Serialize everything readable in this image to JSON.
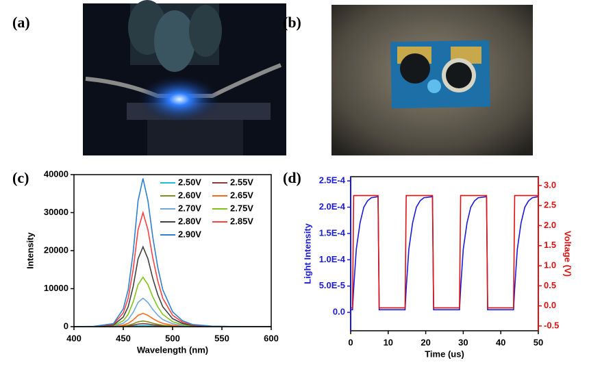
{
  "panels": [
    {
      "label": "(a)"
    },
    {
      "label": "(b)"
    },
    {
      "label": "(c)"
    },
    {
      "label": "(d)"
    }
  ],
  "chart_data": [
    {
      "type": "line",
      "xlabel": "Wavelength (nm)",
      "ylabel": "Intensity",
      "x": [
        400,
        420,
        440,
        450,
        455,
        460,
        465,
        470,
        475,
        480,
        485,
        490,
        500,
        510,
        520,
        540,
        560,
        580,
        600
      ],
      "xlim": [
        400,
        600
      ],
      "xticks": [
        400,
        450,
        500,
        550,
        600
      ],
      "ylim": [
        0,
        40000
      ],
      "yticks": [
        0,
        10000,
        20000,
        30000,
        40000
      ],
      "legend": "upper right",
      "legend_columns": 2,
      "series": [
        {
          "name": "2.50V",
          "color": "#1fc0d0",
          "values": [
            0,
            1,
            6,
            36,
            75,
            150,
            255,
            300,
            255,
            180,
            120,
            75,
            30,
            12,
            5,
            1,
            0,
            0,
            0
          ]
        },
        {
          "name": "2.55V",
          "color": "#8b3a3a",
          "values": [
            0,
            2,
            16,
            96,
            200,
            400,
            680,
            800,
            680,
            480,
            320,
            200,
            80,
            32,
            12,
            2,
            1,
            0,
            0
          ]
        },
        {
          "name": "2.60V",
          "color": "#7f8f1f",
          "values": [
            0,
            3,
            30,
            180,
            375,
            750,
            1275,
            1500,
            1275,
            900,
            600,
            375,
            150,
            60,
            23,
            5,
            2,
            0,
            0
          ]
        },
        {
          "name": "2.65V",
          "color": "#ff6a1a",
          "values": [
            0,
            7,
            70,
            420,
            875,
            1750,
            2975,
            3500,
            2975,
            2100,
            1400,
            875,
            350,
            140,
            53,
            11,
            4,
            0,
            0
          ]
        },
        {
          "name": "2.70V",
          "color": "#6fa8dc",
          "values": [
            0,
            15,
            150,
            900,
            1875,
            3750,
            6375,
            7500,
            6375,
            4500,
            3000,
            1875,
            750,
            300,
            113,
            23,
            8,
            0,
            0
          ]
        },
        {
          "name": "2.75V",
          "color": "#7fc31c",
          "values": [
            0,
            26,
            260,
            1560,
            3250,
            6500,
            11050,
            13000,
            11050,
            7800,
            5200,
            3250,
            1300,
            520,
            195,
            39,
            13,
            0,
            0
          ]
        },
        {
          "name": "2.80V",
          "color": "#404040",
          "values": [
            0,
            42,
            420,
            2520,
            5250,
            10500,
            17850,
            21000,
            17850,
            12600,
            8400,
            5250,
            2100,
            840,
            315,
            63,
            21,
            0,
            0
          ]
        },
        {
          "name": "2.85V",
          "color": "#ff4040",
          "values": [
            0,
            60,
            600,
            3600,
            7500,
            15000,
            25500,
            30000,
            25500,
            18000,
            12000,
            7500,
            3000,
            1200,
            450,
            90,
            30,
            0,
            0
          ]
        },
        {
          "name": "2.90V",
          "color": "#2f7fd0",
          "values": [
            0,
            78,
            780,
            4680,
            9750,
            19500,
            33150,
            39000,
            33150,
            23400,
            15600,
            9750,
            3900,
            1560,
            585,
            117,
            39,
            0,
            0
          ]
        }
      ]
    },
    {
      "type": "line",
      "xlabel": "Time (us)",
      "ylabel": "Light Intensity",
      "y2label": "Voltage (V)",
      "x": [
        0,
        0.5,
        0.8,
        1.5,
        2.5,
        3.5,
        4.5,
        5.5,
        7.3,
        7.6,
        14.5,
        14.8,
        15.5,
        16.5,
        17.5,
        18.5,
        19.5,
        21.8,
        22.1,
        29,
        29.3,
        30,
        31,
        32,
        33,
        34,
        36.2,
        36.5,
        43.4,
        43.7,
        44.4,
        45.4,
        46.4,
        47.4,
        48.4,
        50
      ],
      "xlim": [
        0,
        50
      ],
      "xticks": [
        0,
        10,
        20,
        30,
        40,
        50
      ],
      "ylim": [
        -3.5e-05,
        0.000258
      ],
      "yticks": [
        {
          "value": 0,
          "label": "0.0"
        },
        {
          "value": 5e-05,
          "label": "5.0E-5"
        },
        {
          "value": 0.0001,
          "label": "1.0E-4"
        },
        {
          "value": 0.00015,
          "label": "1.5E-4"
        },
        {
          "value": 0.0002,
          "label": "2.0E-4"
        },
        {
          "value": 0.00025,
          "label": "2.5E-4"
        }
      ],
      "y2lim": [
        -0.62,
        3.22
      ],
      "y2ticks": [
        -0.5,
        {
          "value": 0,
          "label": "0.0"
        },
        0.5,
        {
          "value": 1,
          "label": "1.0"
        },
        1.5,
        {
          "value": 2,
          "label": "2.0"
        },
        2.5,
        {
          "value": 3,
          "label": "3.0"
        }
      ],
      "series": [
        {
          "color": "#1a1adc",
          "values": [
            5e-06,
            5e-06,
            4.5e-05,
            0.00012,
            0.00017,
            0.0002,
            0.000212,
            0.000218,
            0.00022,
            5e-06,
            5e-06,
            4.5e-05,
            0.00012,
            0.00017,
            0.0002,
            0.000212,
            0.000218,
            0.00022,
            5e-06,
            5e-06,
            4.5e-05,
            0.00012,
            0.00017,
            0.0002,
            0.000212,
            0.000218,
            0.00022,
            5e-06,
            5e-06,
            4.5e-05,
            0.00012,
            0.00017,
            0.0002,
            0.000212,
            0.000218,
            0.00022
          ]
        },
        {
          "color": "#e01010",
          "axis": "y2",
          "values": [
            -0.05,
            -0.05,
            2.75,
            2.75,
            2.75,
            2.75,
            2.75,
            2.75,
            2.75,
            -0.05,
            -0.05,
            2.75,
            2.75,
            2.75,
            2.75,
            2.75,
            2.75,
            2.75,
            -0.05,
            -0.05,
            2.75,
            2.75,
            2.75,
            2.75,
            2.75,
            2.75,
            2.75,
            -0.05,
            -0.05,
            2.75,
            2.75,
            2.75,
            2.75,
            2.75,
            2.75,
            2.75
          ]
        }
      ]
    }
  ]
}
